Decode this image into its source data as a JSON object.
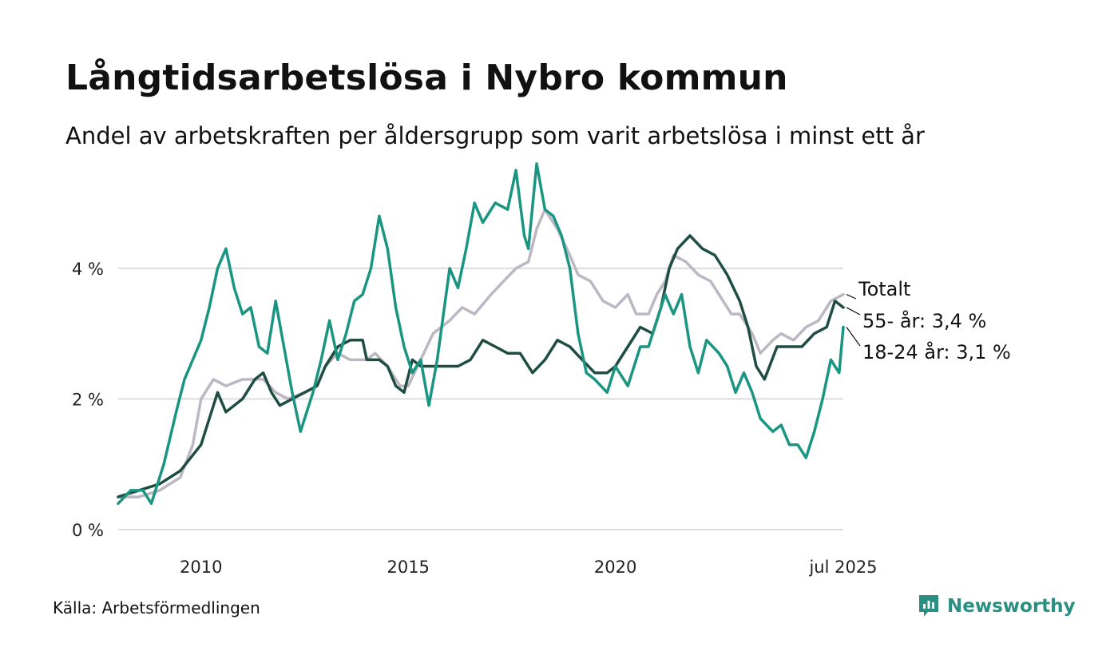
{
  "title": "Långtidsarbetslösa i Nybro kommun",
  "subtitle": "Andel av arbetskraften per åldersgrupp som varit arbetslösa i minst ett år",
  "source": "Källa: Arbetsförmedlingen",
  "brand": "Newsworthy",
  "chart_data": {
    "type": "line",
    "y_unit": "%",
    "ylim": [
      0,
      5.6
    ],
    "xlim": [
      2008.0,
      2025.5
    ],
    "grid": true,
    "y_ticks": [
      {
        "value": 0,
        "label": "0 %"
      },
      {
        "value": 2,
        "label": "2 %"
      },
      {
        "value": 4,
        "label": "4 %"
      }
    ],
    "x_ticks": [
      {
        "value": 2010,
        "label": "2010"
      },
      {
        "value": 2015,
        "label": "2015"
      },
      {
        "value": 2020,
        "label": "2020"
      },
      {
        "value": 2025.5,
        "label": "jul 2025"
      }
    ],
    "series": [
      {
        "name": "Totalt",
        "label": "Totalt",
        "color": "#bdb7c4",
        "points": [
          [
            2008.0,
            0.5
          ],
          [
            2008.5,
            0.5
          ],
          [
            2009.0,
            0.6
          ],
          [
            2009.5,
            0.8
          ],
          [
            2009.8,
            1.3
          ],
          [
            2010.0,
            2.0
          ],
          [
            2010.3,
            2.3
          ],
          [
            2010.6,
            2.2
          ],
          [
            2011.0,
            2.3
          ],
          [
            2011.5,
            2.3
          ],
          [
            2011.8,
            2.1
          ],
          [
            2012.1,
            2.0
          ],
          [
            2012.5,
            2.1
          ],
          [
            2012.8,
            2.2
          ],
          [
            2013.0,
            2.5
          ],
          [
            2013.3,
            2.7
          ],
          [
            2013.6,
            2.6
          ],
          [
            2014.0,
            2.6
          ],
          [
            2014.2,
            2.7
          ],
          [
            2014.5,
            2.5
          ],
          [
            2014.8,
            2.2
          ],
          [
            2015.0,
            2.2
          ],
          [
            2015.3,
            2.6
          ],
          [
            2015.6,
            3.0
          ],
          [
            2016.0,
            3.2
          ],
          [
            2016.3,
            3.4
          ],
          [
            2016.6,
            3.3
          ],
          [
            2017.0,
            3.6
          ],
          [
            2017.3,
            3.8
          ],
          [
            2017.6,
            4.0
          ],
          [
            2017.9,
            4.1
          ],
          [
            2018.1,
            4.6
          ],
          [
            2018.3,
            4.9
          ],
          [
            2018.6,
            4.6
          ],
          [
            2018.9,
            4.2
          ],
          [
            2019.1,
            3.9
          ],
          [
            2019.4,
            3.8
          ],
          [
            2019.7,
            3.5
          ],
          [
            2020.0,
            3.4
          ],
          [
            2020.3,
            3.6
          ],
          [
            2020.5,
            3.3
          ],
          [
            2020.8,
            3.3
          ],
          [
            2021.0,
            3.6
          ],
          [
            2021.2,
            3.8
          ],
          [
            2021.4,
            4.2
          ],
          [
            2021.7,
            4.1
          ],
          [
            2022.0,
            3.9
          ],
          [
            2022.3,
            3.8
          ],
          [
            2022.5,
            3.6
          ],
          [
            2022.8,
            3.3
          ],
          [
            2023.0,
            3.3
          ],
          [
            2023.3,
            3.0
          ],
          [
            2023.5,
            2.7
          ],
          [
            2023.8,
            2.9
          ],
          [
            2024.0,
            3.0
          ],
          [
            2024.3,
            2.9
          ],
          [
            2024.6,
            3.1
          ],
          [
            2024.9,
            3.2
          ],
          [
            2025.2,
            3.5
          ],
          [
            2025.5,
            3.6
          ]
        ]
      },
      {
        "name": "55- år",
        "label": "55- år: 3,4 %",
        "color": "#1f4d43",
        "points": [
          [
            2008.0,
            0.5
          ],
          [
            2008.5,
            0.6
          ],
          [
            2009.0,
            0.7
          ],
          [
            2009.5,
            0.9
          ],
          [
            2010.0,
            1.3
          ],
          [
            2010.2,
            1.7
          ],
          [
            2010.4,
            2.1
          ],
          [
            2010.6,
            1.8
          ],
          [
            2011.0,
            2.0
          ],
          [
            2011.3,
            2.3
          ],
          [
            2011.5,
            2.4
          ],
          [
            2011.7,
            2.1
          ],
          [
            2011.9,
            1.9
          ],
          [
            2012.2,
            2.0
          ],
          [
            2012.5,
            2.1
          ],
          [
            2012.8,
            2.2
          ],
          [
            2013.0,
            2.5
          ],
          [
            2013.3,
            2.8
          ],
          [
            2013.6,
            2.9
          ],
          [
            2013.9,
            2.9
          ],
          [
            2014.0,
            2.6
          ],
          [
            2014.3,
            2.6
          ],
          [
            2014.5,
            2.5
          ],
          [
            2014.7,
            2.2
          ],
          [
            2014.9,
            2.1
          ],
          [
            2015.1,
            2.6
          ],
          [
            2015.3,
            2.5
          ],
          [
            2015.6,
            2.5
          ],
          [
            2015.9,
            2.5
          ],
          [
            2016.2,
            2.5
          ],
          [
            2016.5,
            2.6
          ],
          [
            2016.8,
            2.9
          ],
          [
            2017.1,
            2.8
          ],
          [
            2017.4,
            2.7
          ],
          [
            2017.7,
            2.7
          ],
          [
            2018.0,
            2.4
          ],
          [
            2018.3,
            2.6
          ],
          [
            2018.6,
            2.9
          ],
          [
            2018.9,
            2.8
          ],
          [
            2019.2,
            2.6
          ],
          [
            2019.5,
            2.4
          ],
          [
            2019.8,
            2.4
          ],
          [
            2020.0,
            2.5
          ],
          [
            2020.3,
            2.8
          ],
          [
            2020.6,
            3.1
          ],
          [
            2020.9,
            3.0
          ],
          [
            2021.1,
            3.4
          ],
          [
            2021.3,
            4.0
          ],
          [
            2021.5,
            4.3
          ],
          [
            2021.8,
            4.5
          ],
          [
            2022.1,
            4.3
          ],
          [
            2022.4,
            4.2
          ],
          [
            2022.7,
            3.9
          ],
          [
            2023.0,
            3.5
          ],
          [
            2023.2,
            3.1
          ],
          [
            2023.4,
            2.5
          ],
          [
            2023.6,
            2.3
          ],
          [
            2023.9,
            2.8
          ],
          [
            2024.2,
            2.8
          ],
          [
            2024.5,
            2.8
          ],
          [
            2024.8,
            3.0
          ],
          [
            2025.1,
            3.1
          ],
          [
            2025.3,
            3.5
          ],
          [
            2025.5,
            3.4
          ]
        ]
      },
      {
        "name": "18-24 år",
        "label": "18-24 år: 3,1 %",
        "color": "#1a9582",
        "points": [
          [
            2008.0,
            0.4
          ],
          [
            2008.3,
            0.6
          ],
          [
            2008.6,
            0.6
          ],
          [
            2008.8,
            0.4
          ],
          [
            2009.1,
            1.0
          ],
          [
            2009.4,
            1.8
          ],
          [
            2009.6,
            2.3
          ],
          [
            2009.8,
            2.6
          ],
          [
            2010.0,
            2.9
          ],
          [
            2010.2,
            3.4
          ],
          [
            2010.4,
            4.0
          ],
          [
            2010.6,
            4.3
          ],
          [
            2010.8,
            3.7
          ],
          [
            2011.0,
            3.3
          ],
          [
            2011.2,
            3.4
          ],
          [
            2011.4,
            2.8
          ],
          [
            2011.6,
            2.7
          ],
          [
            2011.8,
            3.5
          ],
          [
            2012.0,
            2.8
          ],
          [
            2012.2,
            2.1
          ],
          [
            2012.4,
            1.5
          ],
          [
            2012.7,
            2.1
          ],
          [
            2012.9,
            2.6
          ],
          [
            2013.1,
            3.2
          ],
          [
            2013.3,
            2.6
          ],
          [
            2013.5,
            3.0
          ],
          [
            2013.7,
            3.5
          ],
          [
            2013.9,
            3.6
          ],
          [
            2014.1,
            4.0
          ],
          [
            2014.3,
            4.8
          ],
          [
            2014.5,
            4.3
          ],
          [
            2014.7,
            3.4
          ],
          [
            2014.9,
            2.8
          ],
          [
            2015.1,
            2.4
          ],
          [
            2015.3,
            2.6
          ],
          [
            2015.5,
            1.9
          ],
          [
            2015.7,
            2.6
          ],
          [
            2016.0,
            4.0
          ],
          [
            2016.2,
            3.7
          ],
          [
            2016.4,
            4.3
          ],
          [
            2016.6,
            5.0
          ],
          [
            2016.8,
            4.7
          ],
          [
            2017.1,
            5.0
          ],
          [
            2017.4,
            4.9
          ],
          [
            2017.6,
            5.5
          ],
          [
            2017.8,
            4.5
          ],
          [
            2017.9,
            4.3
          ],
          [
            2018.1,
            5.6
          ],
          [
            2018.3,
            4.9
          ],
          [
            2018.5,
            4.8
          ],
          [
            2018.7,
            4.5
          ],
          [
            2018.9,
            4.0
          ],
          [
            2019.1,
            3.0
          ],
          [
            2019.3,
            2.4
          ],
          [
            2019.5,
            2.3
          ],
          [
            2019.8,
            2.1
          ],
          [
            2020.0,
            2.5
          ],
          [
            2020.3,
            2.2
          ],
          [
            2020.6,
            2.8
          ],
          [
            2020.8,
            2.8
          ],
          [
            2021.0,
            3.2
          ],
          [
            2021.2,
            3.6
          ],
          [
            2021.4,
            3.3
          ],
          [
            2021.6,
            3.6
          ],
          [
            2021.8,
            2.8
          ],
          [
            2022.0,
            2.4
          ],
          [
            2022.2,
            2.9
          ],
          [
            2022.5,
            2.7
          ],
          [
            2022.7,
            2.5
          ],
          [
            2022.9,
            2.1
          ],
          [
            2023.1,
            2.4
          ],
          [
            2023.3,
            2.1
          ],
          [
            2023.5,
            1.7
          ],
          [
            2023.8,
            1.5
          ],
          [
            2024.0,
            1.6
          ],
          [
            2024.2,
            1.3
          ],
          [
            2024.4,
            1.3
          ],
          [
            2024.6,
            1.1
          ],
          [
            2024.8,
            1.5
          ],
          [
            2025.0,
            2.0
          ],
          [
            2025.2,
            2.6
          ],
          [
            2025.4,
            2.4
          ],
          [
            2025.5,
            3.1
          ]
        ]
      }
    ]
  }
}
